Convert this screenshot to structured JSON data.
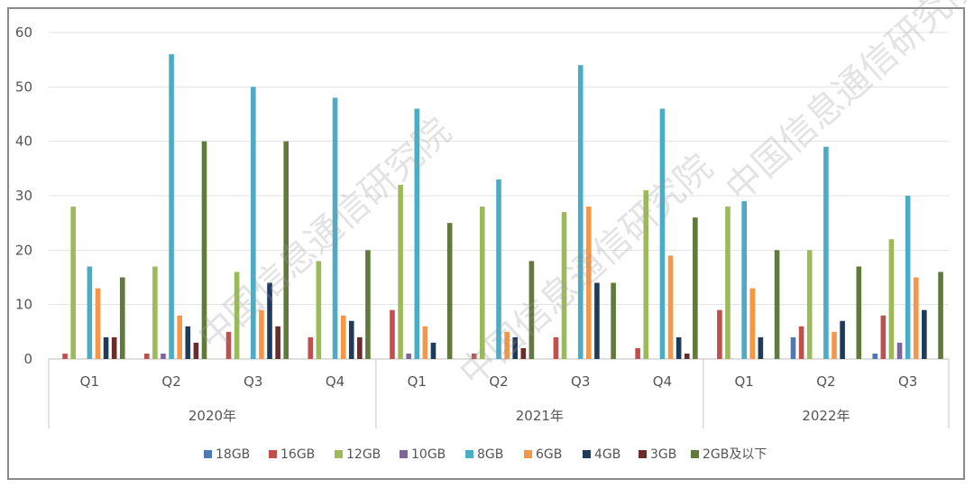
{
  "chart_data": {
    "type": "bar",
    "ylim": [
      0,
      60
    ],
    "yticks": [
      "0",
      "10",
      "20",
      "30",
      "40",
      "50",
      "60"
    ],
    "grid": true,
    "legend_position": "bottom",
    "categories": [
      "Q1",
      "Q2",
      "Q3",
      "Q4",
      "Q1",
      "Q2",
      "Q3",
      "Q4",
      "Q1",
      "Q2",
      "Q3"
    ],
    "groups": [
      {
        "label": "2020年",
        "span": 4
      },
      {
        "label": "2021年",
        "span": 4
      },
      {
        "label": "2022年",
        "span": 3
      }
    ],
    "series": [
      {
        "name": "18GB",
        "color": "#4e79b5",
        "values": [
          0,
          0,
          0,
          0,
          0,
          0,
          0,
          0,
          0,
          4,
          1
        ]
      },
      {
        "name": "16GB",
        "color": "#c0504d",
        "values": [
          1,
          1,
          5,
          4,
          9,
          1,
          4,
          2,
          9,
          6,
          8
        ]
      },
      {
        "name": "12GB",
        "color": "#9bbb59",
        "values": [
          28,
          17,
          16,
          18,
          32,
          28,
          27,
          31,
          28,
          20,
          22
        ]
      },
      {
        "name": "10GB",
        "color": "#8064a2",
        "values": [
          0,
          1,
          0,
          0,
          1,
          0,
          0,
          0,
          0,
          0,
          3
        ]
      },
      {
        "name": "8GB",
        "color": "#4bacc6",
        "values": [
          17,
          56,
          50,
          48,
          46,
          33,
          54,
          46,
          29,
          39,
          30
        ]
      },
      {
        "name": "6GB",
        "color": "#f79646",
        "values": [
          13,
          8,
          9,
          8,
          6,
          5,
          28,
          19,
          13,
          5,
          15
        ]
      },
      {
        "name": "4GB",
        "color": "#1f3a5a",
        "values": [
          4,
          6,
          14,
          7,
          3,
          4,
          14,
          4,
          4,
          7,
          9
        ]
      },
      {
        "name": "3GB",
        "color": "#6b2c2c",
        "values": [
          4,
          3,
          6,
          4,
          0,
          2,
          0,
          1,
          0,
          0,
          0
        ]
      },
      {
        "name": "2GB及以下",
        "color": "#5f7a3a",
        "values": [
          15,
          40,
          40,
          20,
          25,
          18,
          14,
          26,
          20,
          17,
          16
        ]
      }
    ]
  },
  "watermark": {
    "text": "中国信息通信研究院"
  }
}
